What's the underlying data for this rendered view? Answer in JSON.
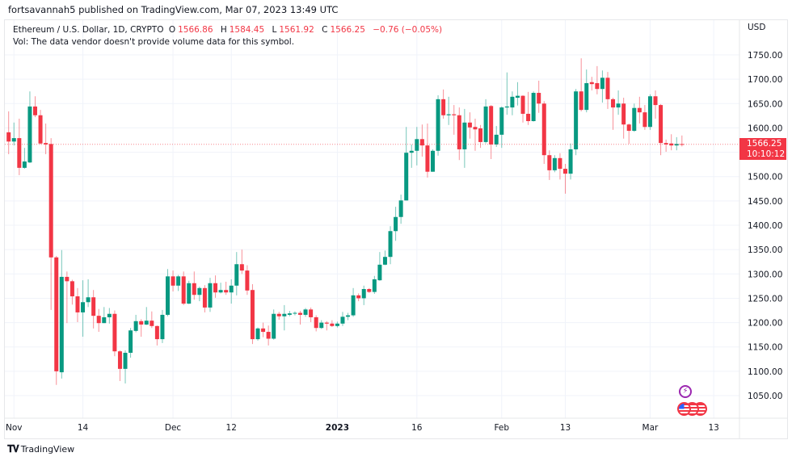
{
  "header": {
    "published": "fortsavannah5 published on TradingView.com, Mar 07, 2023 13:49 UTC"
  },
  "legend": {
    "symbol": "Ethereum / U.S. Dollar, 1D, CRYPTO",
    "open_label": "O",
    "open": "1566.86",
    "high_label": "H",
    "high": "1584.45",
    "low_label": "L",
    "low": "1561.92",
    "close_label": "C",
    "close": "1566.25",
    "change": "−0.76 (−0.05%)",
    "volume_note": "Vol: The data vendor doesn't provide volume data for this symbol."
  },
  "price_axis": {
    "currency": "USD",
    "last_price": "1566.25",
    "countdown": "10:10:12"
  },
  "footer": {
    "brand": "TradingView",
    "brand_mark": "17"
  },
  "colors": {
    "up": "#089981",
    "down": "#f23645",
    "grid": "#f0f3fa",
    "price_line": "#f23645"
  },
  "icons": {
    "event": "lightning-icon",
    "economic": "us-flag-icon"
  },
  "chart_data": {
    "type": "candlestick",
    "title": "Ethereum / U.S. Dollar, 1D, CRYPTO",
    "ylabel": "USD",
    "ylim": [
      1000,
      1800
    ],
    "grid": true,
    "y_ticks": [
      "1050.00",
      "1100.00",
      "1150.00",
      "1200.00",
      "1250.00",
      "1300.00",
      "1350.00",
      "1400.00",
      "1450.00",
      "1500.00",
      "1550.00",
      "1600.00",
      "1650.00",
      "1700.00",
      "1750.00"
    ],
    "x_ticks": [
      {
        "date": "2022-11-01",
        "label": "Nov",
        "bold": false
      },
      {
        "date": "2022-11-14",
        "label": "14",
        "bold": false
      },
      {
        "date": "2022-12-01",
        "label": "Dec",
        "bold": false
      },
      {
        "date": "2022-12-12",
        "label": "12",
        "bold": false
      },
      {
        "date": "2023-01-01",
        "label": "2023",
        "bold": true
      },
      {
        "date": "2023-01-16",
        "label": "16",
        "bold": false
      },
      {
        "date": "2023-02-01",
        "label": "Feb",
        "bold": false
      },
      {
        "date": "2023-02-13",
        "label": "13",
        "bold": false
      },
      {
        "date": "2023-03-01",
        "label": "Mar",
        "bold": false
      },
      {
        "date": "2023-03-13",
        "label": "13",
        "bold": false
      }
    ],
    "x_range": [
      "2022-10-30",
      "2023-03-21"
    ],
    "last_price": 1566.25,
    "columns": [
      "date",
      "open",
      "high",
      "low",
      "close"
    ],
    "candles": [
      [
        "2022-10-31",
        1591,
        1634,
        1546,
        1572
      ],
      [
        "2022-11-01",
        1572,
        1611,
        1564,
        1579
      ],
      [
        "2022-11-02",
        1579,
        1619,
        1503,
        1518
      ],
      [
        "2022-11-03",
        1518,
        1559,
        1516,
        1531
      ],
      [
        "2022-11-04",
        1529,
        1675,
        1528,
        1644
      ],
      [
        "2022-11-05",
        1644,
        1665,
        1622,
        1626
      ],
      [
        "2022-11-06",
        1626,
        1637,
        1566,
        1568
      ],
      [
        "2022-11-07",
        1569,
        1609,
        1546,
        1566
      ],
      [
        "2022-11-08",
        1567,
        1579,
        1226,
        1334
      ],
      [
        "2022-11-09",
        1334,
        1337,
        1072,
        1100
      ],
      [
        "2022-11-10",
        1098,
        1349,
        1085,
        1294
      ],
      [
        "2022-11-11",
        1294,
        1305,
        1199,
        1285
      ],
      [
        "2022-11-12",
        1285,
        1288,
        1237,
        1254
      ],
      [
        "2022-11-13",
        1254,
        1271,
        1201,
        1221
      ],
      [
        "2022-11-14",
        1221,
        1287,
        1171,
        1242
      ],
      [
        "2022-11-15",
        1242,
        1289,
        1232,
        1252
      ],
      [
        "2022-11-16",
        1252,
        1267,
        1188,
        1214
      ],
      [
        "2022-11-17",
        1214,
        1228,
        1181,
        1199
      ],
      [
        "2022-11-18",
        1199,
        1232,
        1199,
        1211
      ],
      [
        "2022-11-19",
        1211,
        1230,
        1198,
        1218
      ],
      [
        "2022-11-20",
        1218,
        1225,
        1131,
        1141
      ],
      [
        "2022-11-21",
        1141,
        1143,
        1080,
        1105
      ],
      [
        "2022-11-22",
        1105,
        1143,
        1075,
        1138
      ],
      [
        "2022-11-23",
        1138,
        1189,
        1128,
        1184
      ],
      [
        "2022-11-24",
        1183,
        1216,
        1180,
        1203
      ],
      [
        "2022-11-25",
        1203,
        1207,
        1171,
        1196
      ],
      [
        "2022-11-26",
        1196,
        1232,
        1195,
        1204
      ],
      [
        "2022-11-27",
        1204,
        1223,
        1189,
        1193
      ],
      [
        "2022-11-28",
        1193,
        1194,
        1153,
        1166
      ],
      [
        "2022-11-29",
        1166,
        1226,
        1158,
        1216
      ],
      [
        "2022-11-30",
        1216,
        1310,
        1213,
        1295
      ],
      [
        "2022-12-01",
        1295,
        1307,
        1264,
        1276
      ],
      [
        "2022-12-02",
        1276,
        1298,
        1265,
        1295
      ],
      [
        "2022-12-03",
        1295,
        1305,
        1236,
        1239
      ],
      [
        "2022-12-04",
        1239,
        1286,
        1238,
        1281
      ],
      [
        "2022-12-05",
        1281,
        1305,
        1247,
        1257
      ],
      [
        "2022-12-06",
        1257,
        1274,
        1244,
        1271
      ],
      [
        "2022-12-07",
        1271,
        1277,
        1221,
        1231
      ],
      [
        "2022-12-08",
        1231,
        1292,
        1222,
        1281
      ],
      [
        "2022-12-09",
        1281,
        1297,
        1251,
        1262
      ],
      [
        "2022-12-10",
        1262,
        1282,
        1260,
        1267
      ],
      [
        "2022-12-11",
        1267,
        1284,
        1257,
        1262
      ],
      [
        "2022-12-12",
        1262,
        1289,
        1239,
        1276
      ],
      [
        "2022-12-13",
        1276,
        1345,
        1256,
        1320
      ],
      [
        "2022-12-14",
        1320,
        1350,
        1300,
        1307
      ],
      [
        "2022-12-15",
        1307,
        1318,
        1257,
        1266
      ],
      [
        "2022-12-16",
        1267,
        1279,
        1156,
        1166
      ],
      [
        "2022-12-17",
        1166,
        1190,
        1163,
        1188
      ],
      [
        "2022-12-18",
        1188,
        1200,
        1170,
        1181
      ],
      [
        "2022-12-19",
        1181,
        1194,
        1153,
        1167
      ],
      [
        "2022-12-20",
        1167,
        1227,
        1165,
        1218
      ],
      [
        "2022-12-21",
        1218,
        1222,
        1206,
        1213
      ],
      [
        "2022-12-22",
        1213,
        1236,
        1184,
        1218
      ],
      [
        "2022-12-23",
        1216,
        1224,
        1213,
        1219
      ],
      [
        "2022-12-24",
        1219,
        1223,
        1215,
        1220
      ],
      [
        "2022-12-25",
        1220,
        1224,
        1196,
        1216
      ],
      [
        "2022-12-26",
        1216,
        1230,
        1212,
        1227
      ],
      [
        "2022-12-27",
        1227,
        1231,
        1201,
        1211
      ],
      [
        "2022-12-28",
        1211,
        1215,
        1182,
        1189
      ],
      [
        "2022-12-29",
        1189,
        1205,
        1187,
        1200
      ],
      [
        "2022-12-30",
        1200,
        1203,
        1184,
        1198
      ],
      [
        "2022-12-31",
        1198,
        1205,
        1191,
        1193
      ],
      [
        "2023-01-01",
        1193,
        1202,
        1190,
        1198
      ],
      [
        "2023-01-02",
        1198,
        1222,
        1193,
        1212
      ],
      [
        "2023-01-03",
        1212,
        1220,
        1205,
        1215
      ],
      [
        "2023-01-04",
        1215,
        1271,
        1212,
        1256
      ],
      [
        "2023-01-05",
        1256,
        1260,
        1244,
        1250
      ],
      [
        "2023-01-06",
        1250,
        1276,
        1236,
        1269
      ],
      [
        "2023-01-07",
        1269,
        1271,
        1261,
        1263
      ],
      [
        "2023-01-08",
        1263,
        1296,
        1259,
        1289
      ],
      [
        "2023-01-09",
        1287,
        1345,
        1286,
        1319
      ],
      [
        "2023-01-10",
        1319,
        1348,
        1318,
        1335
      ],
      [
        "2023-01-11",
        1335,
        1398,
        1320,
        1388
      ],
      [
        "2023-01-12",
        1388,
        1438,
        1368,
        1417
      ],
      [
        "2023-01-13",
        1417,
        1463,
        1403,
        1451
      ],
      [
        "2023-01-14",
        1451,
        1602,
        1451,
        1549
      ],
      [
        "2023-01-15",
        1549,
        1566,
        1518,
        1553
      ],
      [
        "2023-01-16",
        1553,
        1602,
        1523,
        1577
      ],
      [
        "2023-01-17",
        1577,
        1607,
        1541,
        1564
      ],
      [
        "2023-01-18",
        1564,
        1609,
        1498,
        1510
      ],
      [
        "2023-01-19",
        1510,
        1556,
        1510,
        1553
      ],
      [
        "2023-01-20",
        1553,
        1667,
        1543,
        1659
      ],
      [
        "2023-01-21",
        1659,
        1679,
        1619,
        1626
      ],
      [
        "2023-01-22",
        1626,
        1664,
        1606,
        1628
      ],
      [
        "2023-01-23",
        1628,
        1647,
        1586,
        1626
      ],
      [
        "2023-01-24",
        1626,
        1642,
        1534,
        1556
      ],
      [
        "2023-01-25",
        1556,
        1639,
        1518,
        1611
      ],
      [
        "2023-01-26",
        1611,
        1632,
        1578,
        1601
      ],
      [
        "2023-01-27",
        1602,
        1619,
        1553,
        1597
      ],
      [
        "2023-01-28",
        1599,
        1606,
        1559,
        1571
      ],
      [
        "2023-01-29",
        1571,
        1659,
        1568,
        1644
      ],
      [
        "2023-01-30",
        1645,
        1647,
        1536,
        1566
      ],
      [
        "2023-01-31",
        1566,
        1604,
        1561,
        1586
      ],
      [
        "2023-02-01",
        1586,
        1644,
        1559,
        1642
      ],
      [
        "2023-02-02",
        1642,
        1714,
        1627,
        1644
      ],
      [
        "2023-02-03",
        1642,
        1675,
        1626,
        1664
      ],
      [
        "2023-02-04",
        1662,
        1694,
        1646,
        1666
      ],
      [
        "2023-02-05",
        1666,
        1667,
        1611,
        1629
      ],
      [
        "2023-02-06",
        1629,
        1674,
        1606,
        1614
      ],
      [
        "2023-02-07",
        1614,
        1675,
        1613,
        1672
      ],
      [
        "2023-02-08",
        1672,
        1697,
        1631,
        1650
      ],
      [
        "2023-02-09",
        1650,
        1655,
        1526,
        1544
      ],
      [
        "2023-02-10",
        1544,
        1554,
        1493,
        1513
      ],
      [
        "2023-02-11",
        1513,
        1544,
        1509,
        1538
      ],
      [
        "2023-02-12",
        1538,
        1548,
        1494,
        1516
      ],
      [
        "2023-02-13",
        1516,
        1526,
        1465,
        1506
      ],
      [
        "2023-02-14",
        1506,
        1568,
        1494,
        1556
      ],
      [
        "2023-02-15",
        1556,
        1680,
        1544,
        1675
      ],
      [
        "2023-02-16",
        1675,
        1743,
        1634,
        1637
      ],
      [
        "2023-02-17",
        1637,
        1720,
        1632,
        1692
      ],
      [
        "2023-02-18",
        1694,
        1705,
        1677,
        1690
      ],
      [
        "2023-02-19",
        1692,
        1727,
        1669,
        1680
      ],
      [
        "2023-02-20",
        1680,
        1718,
        1652,
        1703
      ],
      [
        "2023-02-21",
        1703,
        1715,
        1639,
        1659
      ],
      [
        "2023-02-22",
        1659,
        1662,
        1596,
        1642
      ],
      [
        "2023-02-23",
        1642,
        1677,
        1627,
        1650
      ],
      [
        "2023-02-24",
        1650,
        1662,
        1578,
        1607
      ],
      [
        "2023-02-25",
        1607,
        1609,
        1567,
        1594
      ],
      [
        "2023-02-26",
        1594,
        1650,
        1592,
        1641
      ],
      [
        "2023-02-27",
        1641,
        1664,
        1609,
        1632
      ],
      [
        "2023-02-28",
        1632,
        1647,
        1596,
        1602
      ],
      [
        "2023-03-01",
        1602,
        1669,
        1596,
        1665
      ],
      [
        "2023-03-02",
        1665,
        1677,
        1619,
        1647
      ],
      [
        "2023-03-03",
        1647,
        1649,
        1544,
        1569
      ],
      [
        "2023-03-04",
        1569,
        1576,
        1551,
        1566
      ],
      [
        "2023-03-05",
        1568,
        1587,
        1554,
        1564
      ],
      [
        "2023-03-06",
        1564,
        1581,
        1554,
        1567
      ],
      [
        "2023-03-07",
        1566.86,
        1584.45,
        1561.92,
        1566.25
      ]
    ]
  }
}
